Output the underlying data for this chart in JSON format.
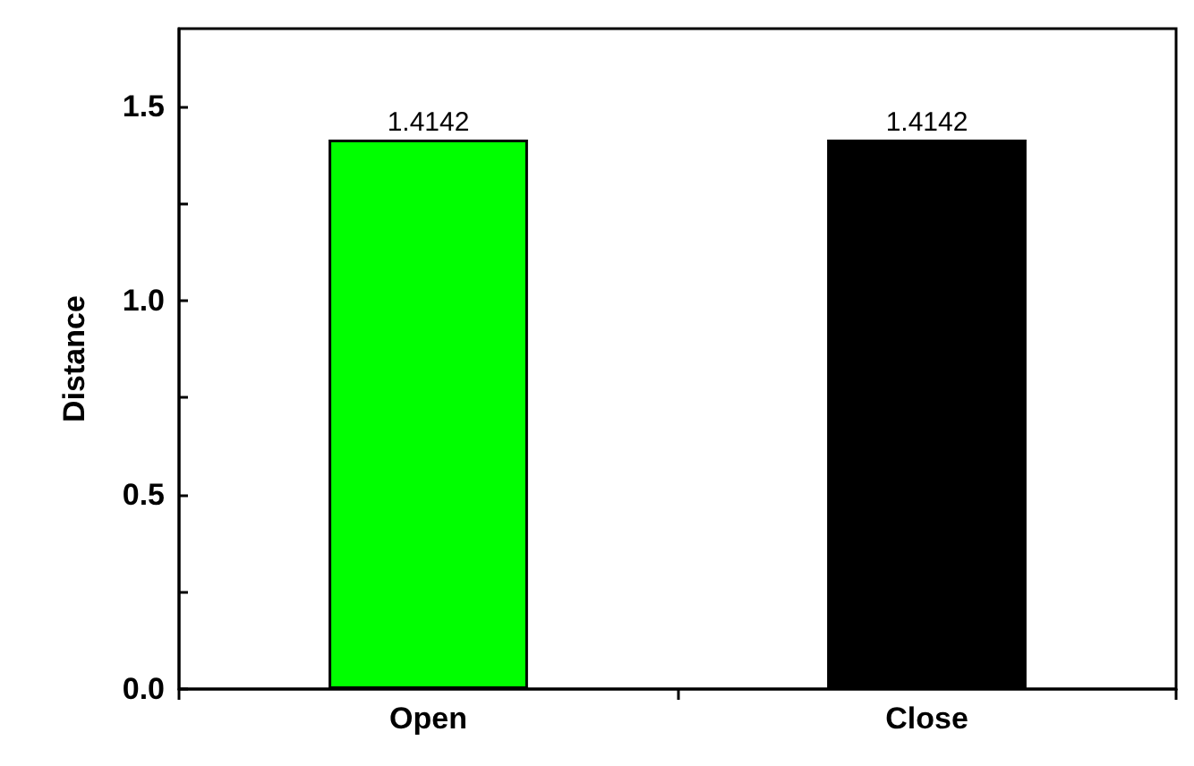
{
  "chart_data": {
    "type": "bar",
    "ylabel": "Distance",
    "categories": [
      "Open",
      "Close"
    ],
    "values": [
      1.4142,
      1.4142
    ],
    "colors": [
      "#00ff00",
      "#000000"
    ],
    "ylim": [
      0,
      1.7
    ],
    "yticks": [
      {
        "value": 0,
        "label": "0.0"
      },
      {
        "value": 0.25,
        "label": null
      },
      0.5,
      {
        "value": 0.75,
        "label": null
      },
      {
        "value": 1,
        "label": "1.0"
      },
      {
        "value": 1.25,
        "label": null
      },
      1.5
    ],
    "data_labels": true
  }
}
